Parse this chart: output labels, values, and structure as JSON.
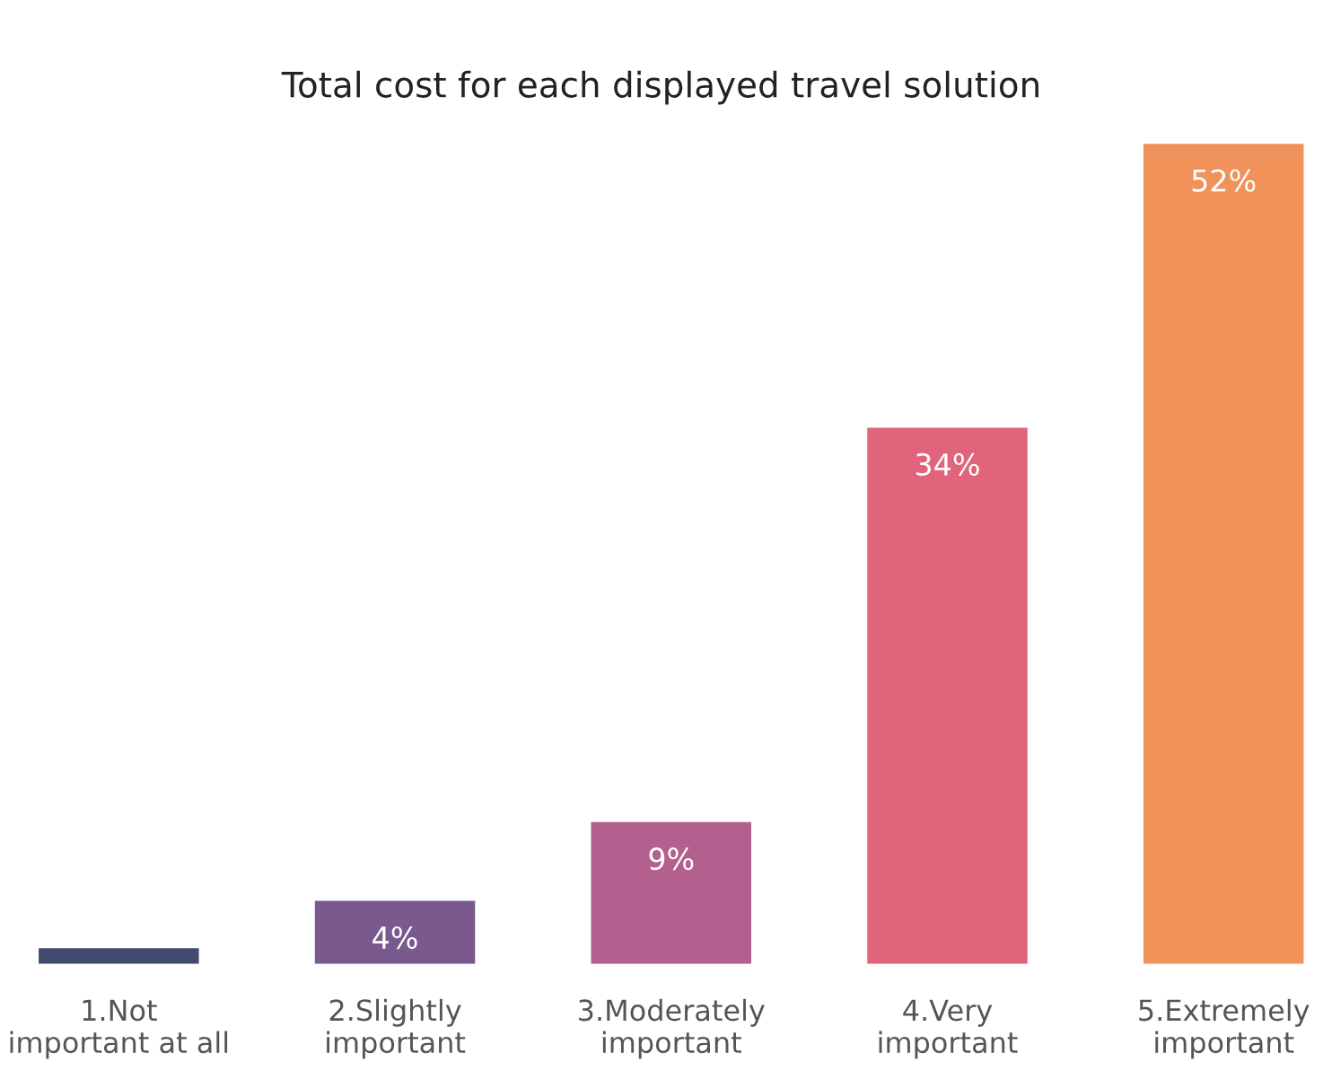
{
  "chart_data": {
    "type": "bar",
    "title": "Total cost for each displayed travel solution",
    "categories": [
      "1.Not important at all",
      "2.Slightly important",
      "3.Moderately important",
      "4.Very important",
      "5.Extremely important"
    ],
    "values": [
      1,
      4,
      9,
      34,
      52
    ],
    "value_labels": [
      null,
      "4%",
      "9%",
      "34%",
      "52%"
    ],
    "colors": [
      "#3f4a6e",
      "#7a5a8e",
      "#b3608e",
      "#e0657a",
      "#f0925a"
    ],
    "grid": false,
    "legend": false
  }
}
